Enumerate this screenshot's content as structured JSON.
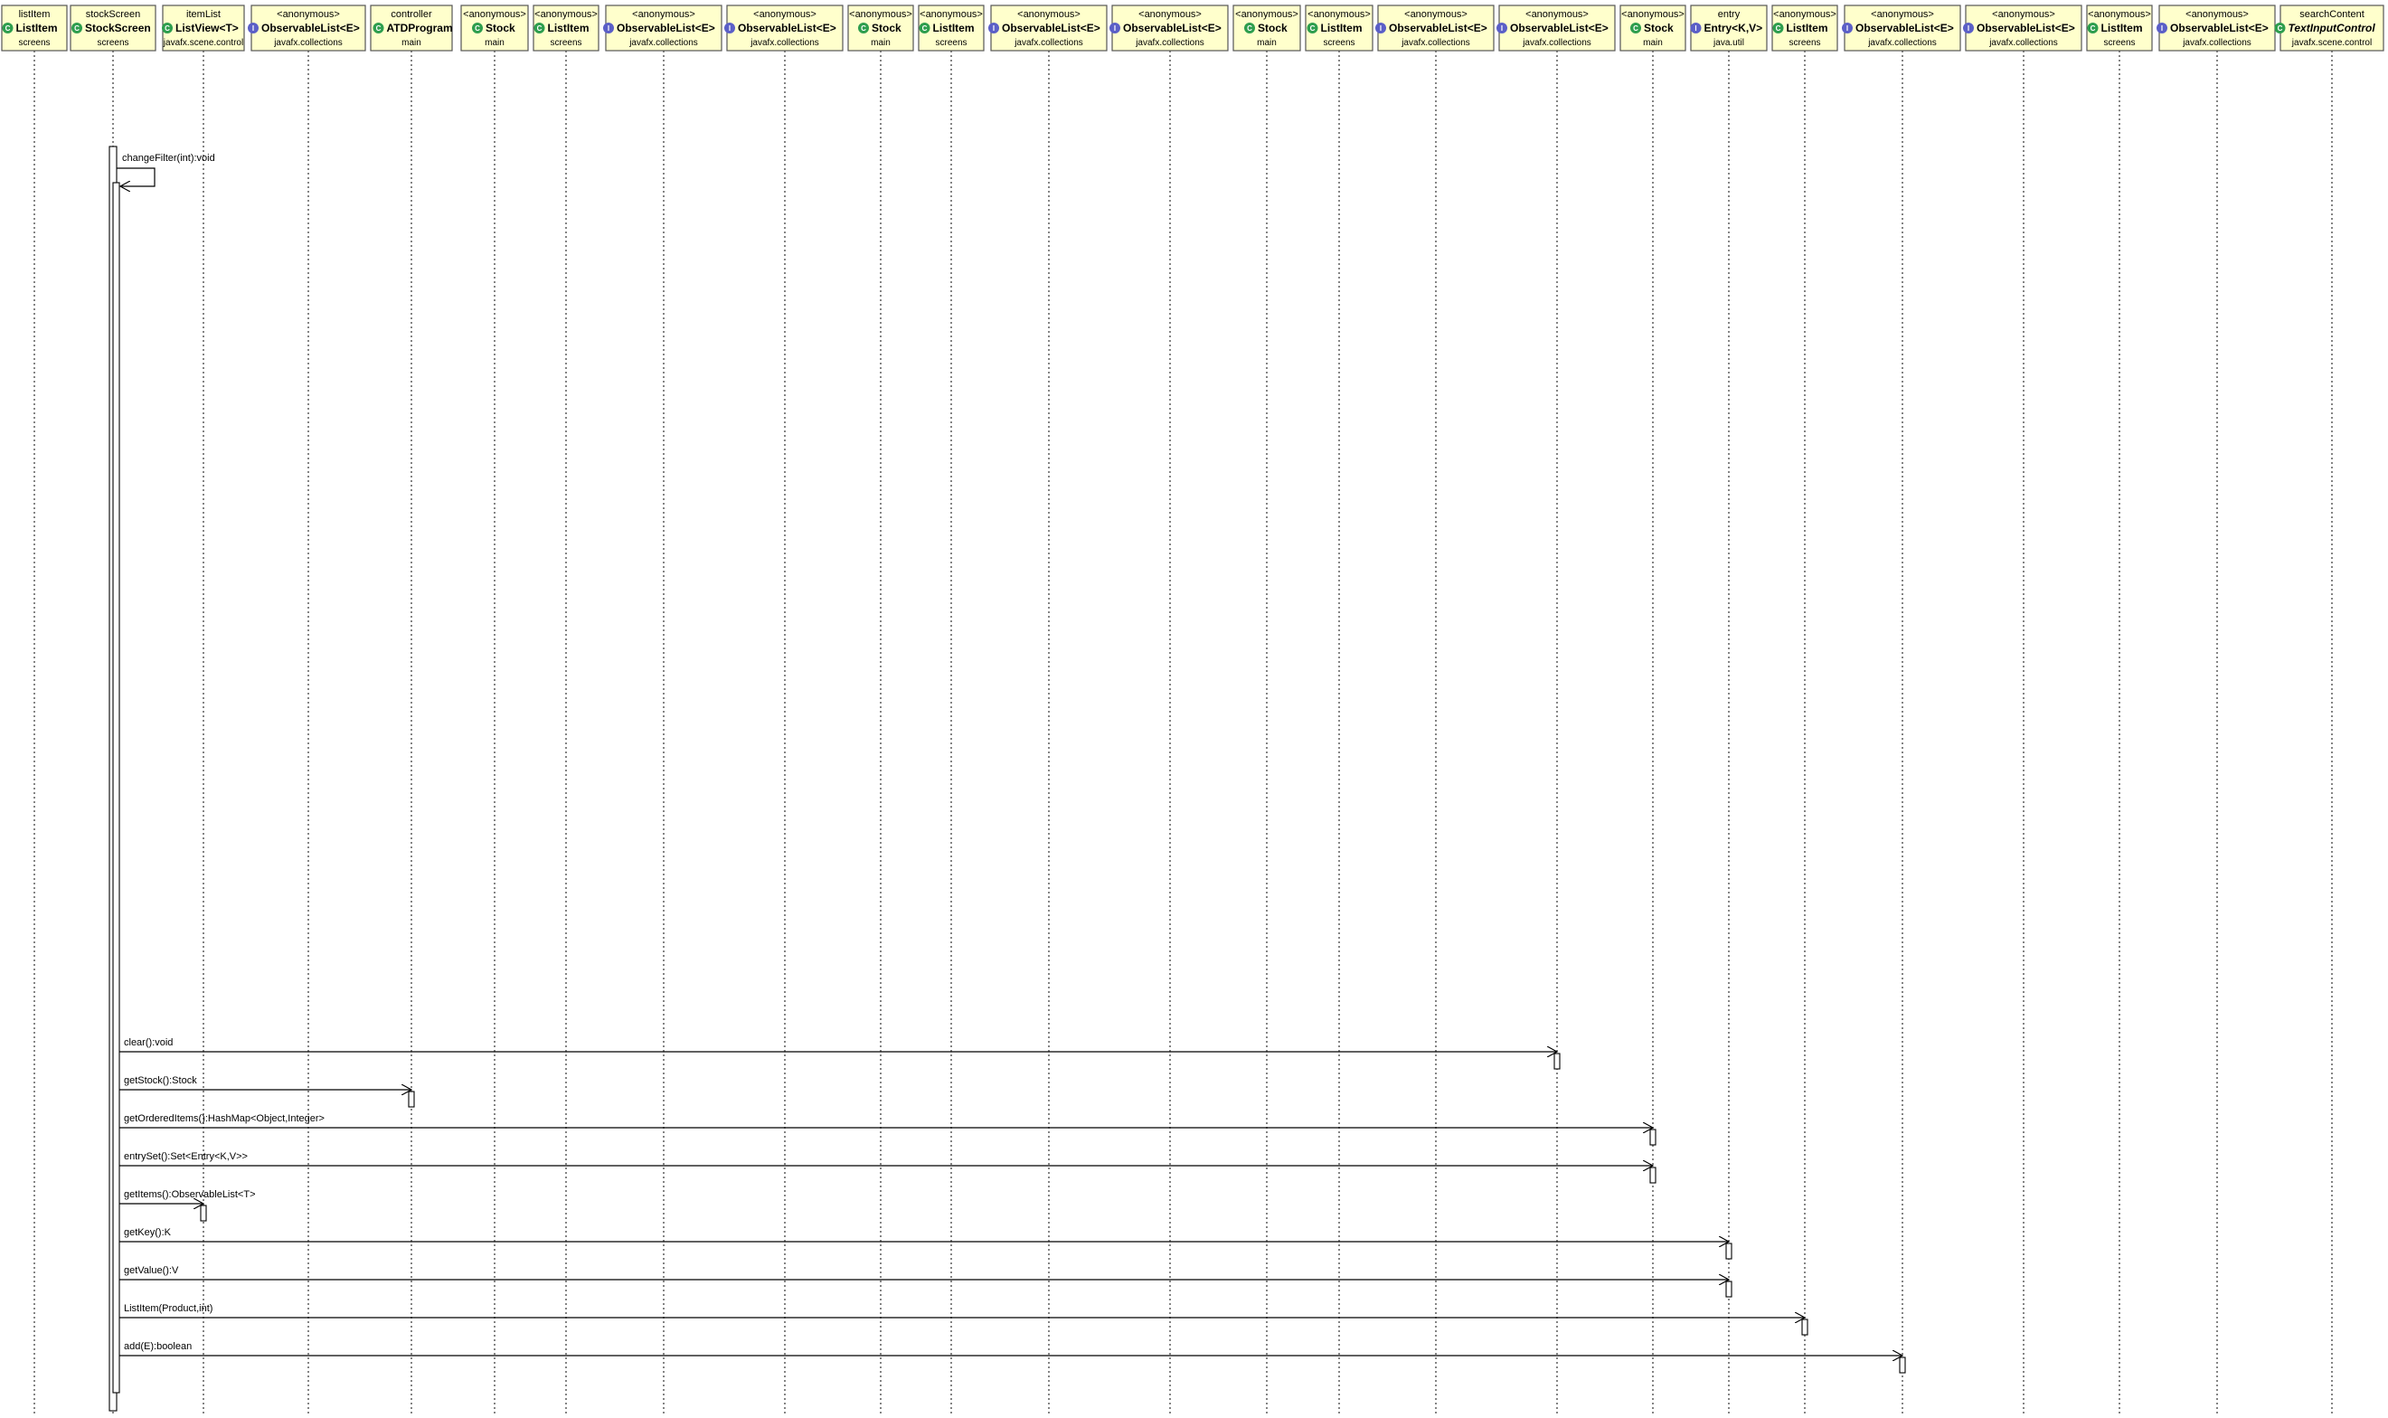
{
  "participants": [
    {
      "top": "listItem",
      "kind": "class",
      "name": "ListItem",
      "pkg": "screens"
    },
    {
      "top": "stockScreen",
      "kind": "class",
      "name": "StockScreen",
      "pkg": "screens"
    },
    {
      "top": "itemList",
      "kind": "class",
      "name": "ListView<T>",
      "pkg": "javafx.scene.control"
    },
    {
      "top": "<anonymous>",
      "kind": "interface",
      "name": "ObservableList<E>",
      "pkg": "javafx.collections"
    },
    {
      "top": "controller",
      "kind": "class",
      "name": "ATDProgram",
      "pkg": "main"
    },
    {
      "top": "<anonymous>",
      "kind": "class",
      "name": "Stock",
      "pkg": "main"
    },
    {
      "top": "<anonymous>",
      "kind": "class",
      "name": "ListItem",
      "pkg": "screens"
    },
    {
      "top": "<anonymous>",
      "kind": "interface",
      "name": "ObservableList<E>",
      "pkg": "javafx.collections"
    },
    {
      "top": "<anonymous>",
      "kind": "interface",
      "name": "ObservableList<E>",
      "pkg": "javafx.collections"
    },
    {
      "top": "<anonymous>",
      "kind": "class",
      "name": "Stock",
      "pkg": "main"
    },
    {
      "top": "<anonymous>",
      "kind": "class",
      "name": "ListItem",
      "pkg": "screens"
    },
    {
      "top": "<anonymous>",
      "kind": "interface",
      "name": "ObservableList<E>",
      "pkg": "javafx.collections"
    },
    {
      "top": "<anonymous>",
      "kind": "interface",
      "name": "ObservableList<E>",
      "pkg": "javafx.collections"
    },
    {
      "top": "<anonymous>",
      "kind": "class",
      "name": "Stock",
      "pkg": "main"
    },
    {
      "top": "<anonymous>",
      "kind": "class",
      "name": "ListItem",
      "pkg": "screens"
    },
    {
      "top": "<anonymous>",
      "kind": "interface",
      "name": "ObservableList<E>",
      "pkg": "javafx.collections"
    },
    {
      "top": "<anonymous>",
      "kind": "interface",
      "name": "ObservableList<E>",
      "pkg": "javafx.collections"
    },
    {
      "top": "<anonymous>",
      "kind": "class",
      "name": "Stock",
      "pkg": "main"
    },
    {
      "top": "entry",
      "kind": "interface",
      "name": "Entry<K,V>",
      "pkg": "java.util"
    },
    {
      "top": "<anonymous>",
      "kind": "class",
      "name": "ListItem",
      "pkg": "screens"
    },
    {
      "top": "<anonymous>",
      "kind": "interface",
      "name": "ObservableList<E>",
      "pkg": "javafx.collections"
    },
    {
      "top": "<anonymous>",
      "kind": "interface",
      "name": "ObservableList<E>",
      "pkg": "javafx.collections"
    },
    {
      "top": "<anonymous>",
      "kind": "class",
      "name": "ListItem",
      "pkg": "screens"
    },
    {
      "top": "<anonymous>",
      "kind": "interface",
      "name": "ObservableList<E>",
      "pkg": "javafx.collections"
    },
    {
      "top": "searchContent",
      "kind": "abstract",
      "name": "TextInputControl",
      "pkg": "javafx.scene.control"
    }
  ],
  "self_message": {
    "label": "changeFilter(int):void",
    "from": 1
  },
  "messages": [
    {
      "label": "clear():void",
      "from": 1,
      "to": 16
    },
    {
      "label": "getStock():Stock",
      "from": 1,
      "to": 4
    },
    {
      "label": "getOrderedItems():HashMap<Object,Integer>",
      "from": 1,
      "to": 17
    },
    {
      "label": "entrySet():Set<Entry<K,V>>",
      "from": 1,
      "to": 17
    },
    {
      "label": "getItems():ObservableList<T>",
      "from": 1,
      "to": 2
    },
    {
      "label": "getKey():K",
      "from": 1,
      "to": 18
    },
    {
      "label": "getValue():V",
      "from": 1,
      "to": 18
    },
    {
      "label": "ListItem(Product,int)",
      "from": 1,
      "to": 19
    },
    {
      "label": "add(E):boolean",
      "from": 1,
      "to": 20
    }
  ]
}
